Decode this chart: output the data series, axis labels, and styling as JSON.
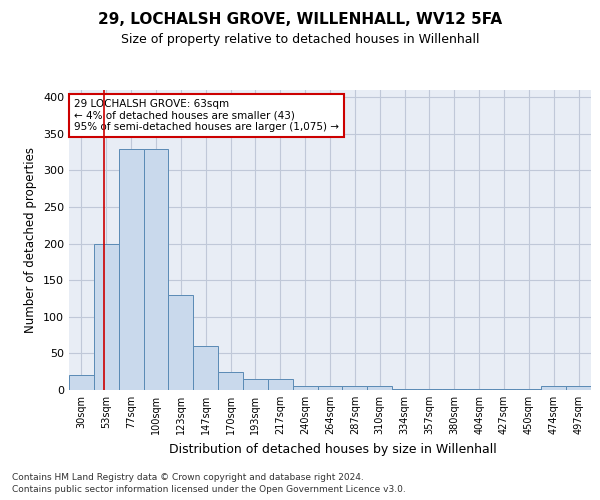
{
  "title": "29, LOCHALSH GROVE, WILLENHALL, WV12 5FA",
  "subtitle": "Size of property relative to detached houses in Willenhall",
  "xlabel": "Distribution of detached houses by size in Willenhall",
  "ylabel": "Number of detached properties",
  "bin_labels": [
    "30sqm",
    "53sqm",
    "77sqm",
    "100sqm",
    "123sqm",
    "147sqm",
    "170sqm",
    "193sqm",
    "217sqm",
    "240sqm",
    "264sqm",
    "287sqm",
    "310sqm",
    "334sqm",
    "357sqm",
    "380sqm",
    "404sqm",
    "427sqm",
    "450sqm",
    "474sqm",
    "497sqm"
  ],
  "bar_heights": [
    20,
    200,
    330,
    330,
    130,
    60,
    25,
    15,
    15,
    5,
    5,
    5,
    5,
    2,
    2,
    2,
    2,
    1,
    1,
    5,
    5
  ],
  "bar_color": "#c9d9ec",
  "bar_edge_color": "#5a8ab5",
  "grid_color": "#c0c8d8",
  "background_color": "#e8edf5",
  "annotation_text": "29 LOCHALSH GROVE: 63sqm\n← 4% of detached houses are smaller (43)\n95% of semi-detached houses are larger (1,075) →",
  "annotation_box_color": "#ffffff",
  "annotation_box_edge": "#cc0000",
  "ylim": [
    0,
    410
  ],
  "yticks": [
    0,
    50,
    100,
    150,
    200,
    250,
    300,
    350,
    400
  ],
  "footer_line1": "Contains HM Land Registry data © Crown copyright and database right 2024.",
  "footer_line2": "Contains public sector information licensed under the Open Government Licence v3.0."
}
